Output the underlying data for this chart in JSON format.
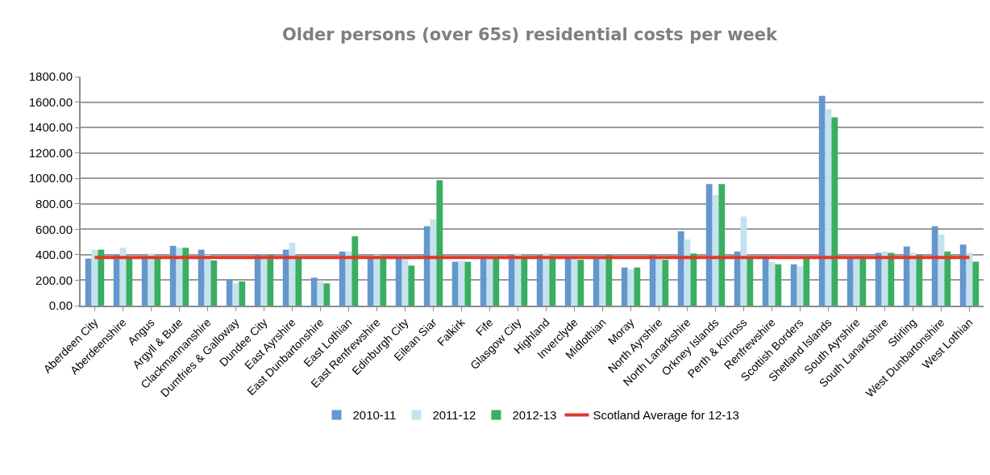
{
  "chart_data": {
    "type": "bar",
    "title": "Older persons (over 65s) residential costs per week",
    "categories": [
      "Aberdeen City",
      "Aberdeenshire",
      "Angus",
      "Argyll & Bute",
      "Clackmannanshire",
      "Dumfries & Galloway",
      "Dundee City",
      "East Ayrshire",
      "East Dunbartonshire",
      "East Lothian",
      "East Renfrewshire",
      "Edinburgh City",
      "Eilean Siar",
      "Falkirk",
      "Fife",
      "Glasgow City",
      "Highland",
      "Inverclyde",
      "Midlothian",
      "Moray",
      "North Ayrshire",
      "North Lanarkshire",
      "Orkney Islands",
      "Perth & Kinross",
      "Renfrewshire",
      "Scottish Borders",
      "Shetland Islands",
      "South Ayrshire",
      "South Lanarkshire",
      "Stirling",
      "West Dunbartonshire",
      "West Lothian"
    ],
    "series": [
      {
        "name": "2010-11",
        "color": "#6497cd",
        "values": [
          370,
          400,
          375,
          470,
          440,
          205,
          400,
          440,
          220,
          425,
          375,
          375,
          625,
          345,
          370,
          400,
          400,
          370,
          375,
          300,
          400,
          585,
          955,
          425,
          375,
          325,
          1650,
          375,
          415,
          465,
          625,
          480
        ]
      },
      {
        "name": "2011-12",
        "color": "#c5e3ee",
        "values": [
          440,
          455,
          410,
          455,
          400,
          175,
          375,
          495,
          190,
          425,
          400,
          375,
          680,
          350,
          375,
          410,
          410,
          370,
          375,
          285,
          375,
          520,
          870,
          700,
          345,
          310,
          1545,
          375,
          425,
          415,
          560,
          415
        ]
      },
      {
        "name": "2012-13",
        "color": "#3aae62",
        "values": [
          440,
          375,
          375,
          455,
          355,
          190,
          400,
          375,
          175,
          545,
          375,
          315,
          985,
          345,
          370,
          375,
          375,
          360,
          400,
          300,
          360,
          410,
          955,
          375,
          325,
          370,
          1480,
          375,
          415,
          400,
          425,
          345
        ]
      },
      {
        "name": "Scotland Average for 12-13",
        "type": "line",
        "color": "#e0382a",
        "values": [
          378,
          378,
          378,
          378,
          378,
          378,
          378,
          378,
          378,
          378,
          378,
          378,
          378,
          378,
          378,
          378,
          378,
          378,
          378,
          378,
          378,
          378,
          378,
          378,
          378,
          378,
          378,
          378,
          378,
          378,
          378,
          378
        ]
      }
    ],
    "ylim": [
      0,
      1800
    ],
    "yticks": [
      {
        "value": 0,
        "label": "0.00"
      },
      {
        "value": 200,
        "label": "200.00"
      },
      {
        "value": 400,
        "label": "400.00"
      },
      {
        "value": 600,
        "label": "600.00"
      },
      {
        "value": 800,
        "label": "800.00"
      },
      {
        "value": 1000,
        "label": "1000.00"
      },
      {
        "value": 1200,
        "label": "1200.00"
      },
      {
        "value": 1400,
        "label": "1400.00"
      },
      {
        "value": 1600,
        "label": "1600.00"
      },
      {
        "value": 1800,
        "label": "1800.00"
      }
    ],
    "grid": "y",
    "legend": "bottom",
    "marker": "none",
    "line_style": "solid"
  }
}
